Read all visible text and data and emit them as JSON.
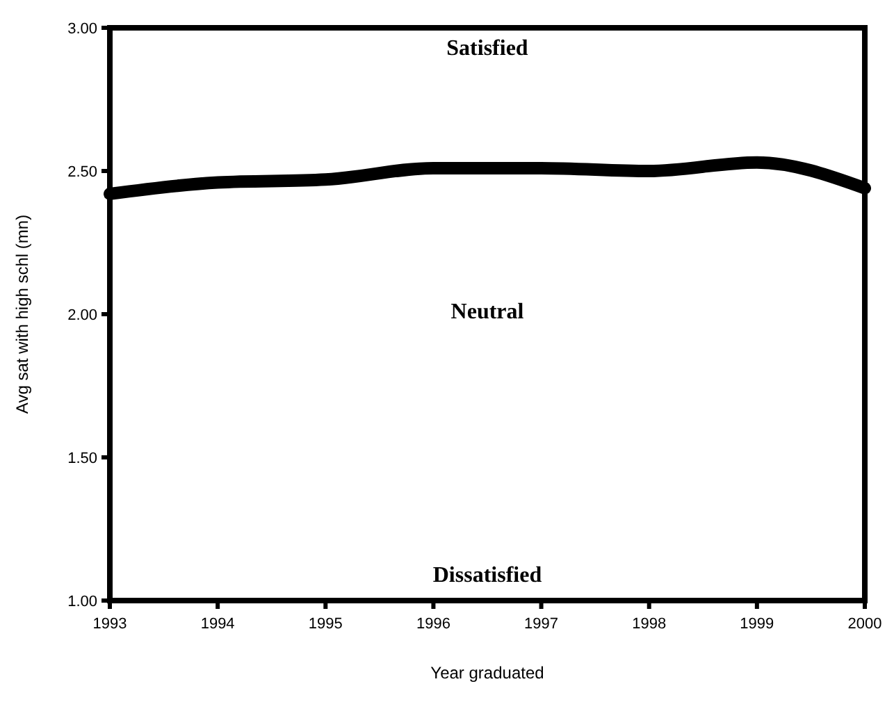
{
  "chart_data": {
    "type": "line",
    "xlabel": "Year graduated",
    "ylabel": "Avg sat with high schl (mn)",
    "x": [
      1993,
      1994,
      1995,
      1996,
      1997,
      1998,
      1999,
      2000
    ],
    "values": [
      2.42,
      2.46,
      2.47,
      2.51,
      2.51,
      2.5,
      2.53,
      2.44
    ],
    "color": "#000000",
    "marker": "none",
    "line_style": "solid",
    "grid": false,
    "xlim": [
      1993,
      2000
    ],
    "xticks": [
      1993,
      1994,
      1995,
      1996,
      1997,
      1998,
      1999,
      2000
    ],
    "ylim": [
      1,
      3
    ],
    "yticks": [
      {
        "value": 1,
        "label": "1.00"
      },
      {
        "value": 1.5,
        "label": "1.50"
      },
      {
        "value": 2,
        "label": "2.00"
      },
      {
        "value": 2.5,
        "label": "2.50"
      },
      {
        "value": 3,
        "label": "3.00"
      }
    ],
    "annotations": [
      "Satisfied",
      "Neutral",
      "Dissatisfied"
    ]
  }
}
